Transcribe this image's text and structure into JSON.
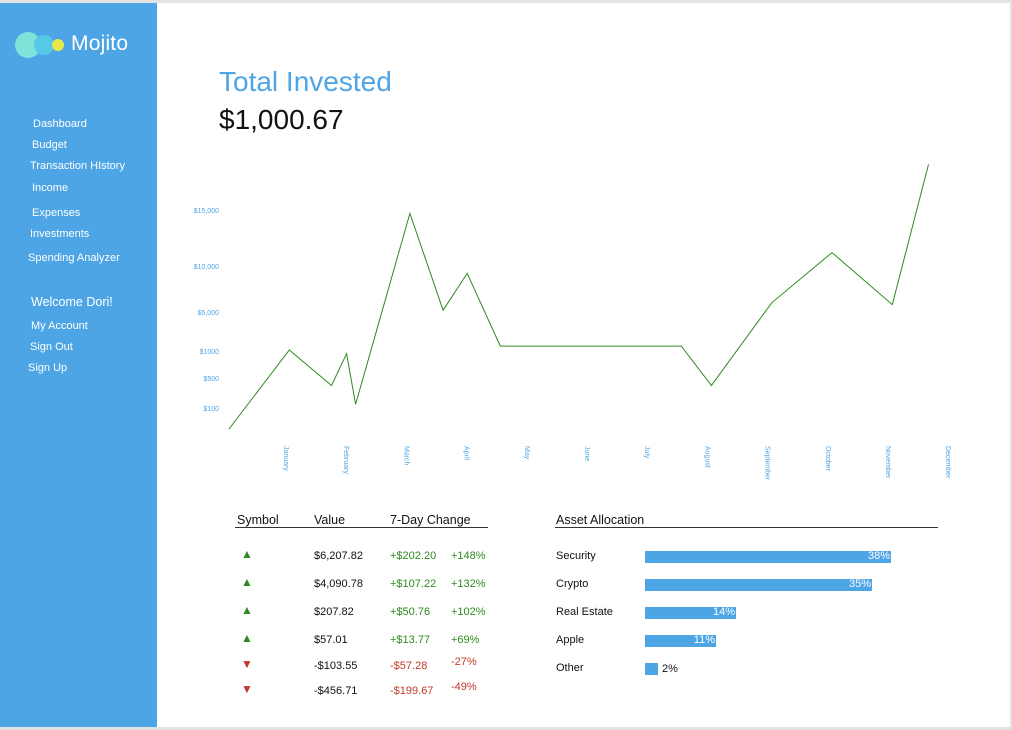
{
  "app": {
    "name": "Mojito"
  },
  "colors": {
    "accent": "#4ea5e6",
    "up": "#2e8b1e",
    "down": "#c0392b",
    "line": "#2e8b1e"
  },
  "nav": {
    "items": [
      {
        "label": "Dashboard"
      },
      {
        "label": "Budget"
      },
      {
        "label": "Transaction HIstory"
      },
      {
        "label": "Income"
      },
      {
        "label": "Expenses"
      },
      {
        "label": "Investments"
      },
      {
        "label": "Spending Analyzer"
      }
    ],
    "welcome": "Welcome Dori!",
    "account_items": [
      {
        "label": "My Account"
      },
      {
        "label": "Sign Out"
      },
      {
        "label": "Sign Up"
      }
    ]
  },
  "summary": {
    "title": "Total Invested",
    "amount": "$1,000.67"
  },
  "chart_data": {
    "type": "line",
    "y_ticks": [
      "$15,000",
      "$10,000",
      "$5,000",
      "$1000",
      "$500",
      "$100"
    ],
    "x_ticks": [
      "January",
      "February",
      "March",
      "April",
      "May",
      "June",
      "July",
      "August",
      "September",
      "October",
      "November",
      "December"
    ],
    "points": [
      [
        0.0,
        0
      ],
      [
        1.0,
        1100
      ],
      [
        1.7,
        400
      ],
      [
        1.95,
        950
      ],
      [
        2.1,
        150
      ],
      [
        3.0,
        14700
      ],
      [
        3.55,
        5200
      ],
      [
        3.95,
        9200
      ],
      [
        4.5,
        1500
      ],
      [
        5.0,
        1500
      ],
      [
        6.0,
        1500
      ],
      [
        7.5,
        1500
      ],
      [
        8.0,
        400
      ],
      [
        9.0,
        6000
      ],
      [
        10.0,
        11200
      ],
      [
        11.0,
        5800
      ],
      [
        11.6,
        19000
      ]
    ],
    "grid": false,
    "legend": "none"
  },
  "holdings": {
    "headers": {
      "symbol": "Symbol",
      "value": "Value",
      "change": "7-Day Change"
    },
    "rows": [
      {
        "direction": "up",
        "arrow": "▲",
        "value": "$6,207.82",
        "change": "+$202.20",
        "pct": "+148%"
      },
      {
        "direction": "up",
        "arrow": "▲",
        "value": "$4,090.78",
        "change": "+$107.22",
        "pct": "+132%"
      },
      {
        "direction": "up",
        "arrow": "▲",
        "value": "$207.82",
        "change": "+$50.76",
        "pct": "+102%"
      },
      {
        "direction": "up",
        "arrow": "▲",
        "value": "$57.01",
        "change": "+$13.77",
        "pct": "+69%"
      },
      {
        "direction": "down",
        "arrow": "▼",
        "value": "-$103.55",
        "change": "-$57.28",
        "pct": "-27%"
      },
      {
        "direction": "down",
        "arrow": "▼",
        "value": "-$456.71",
        "change": "-$199.67",
        "pct": "-49%"
      }
    ]
  },
  "allocation": {
    "title": "Asset Allocation",
    "items": [
      {
        "label": "Security",
        "pct_label": "38%",
        "value": 38
      },
      {
        "label": "Crypto",
        "pct_label": "35%",
        "value": 35
      },
      {
        "label": "Real Estate",
        "pct_label": "14%",
        "value": 14
      },
      {
        "label": "Apple",
        "pct_label": "11%",
        "value": 11
      },
      {
        "label": "Other",
        "pct_label": "2%",
        "value": 2
      }
    ]
  }
}
